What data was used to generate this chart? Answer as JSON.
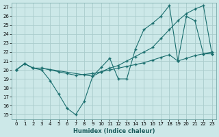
{
  "xlabel": "Humidex (Indice chaleur)",
  "xlim": [
    -0.5,
    23.5
  ],
  "ylim": [
    14.5,
    27.5
  ],
  "yticks": [
    15,
    16,
    17,
    18,
    19,
    20,
    21,
    22,
    23,
    24,
    25,
    26,
    27
  ],
  "xticks": [
    0,
    1,
    2,
    3,
    4,
    5,
    6,
    7,
    8,
    9,
    10,
    11,
    12,
    13,
    14,
    15,
    16,
    17,
    18,
    19,
    20,
    21,
    22,
    23
  ],
  "bg_color": "#cce8e8",
  "grid_color": "#aacccc",
  "line_color": "#1a6e6e",
  "line1_x": [
    0,
    1,
    2,
    3,
    9,
    10,
    11,
    12,
    13,
    14,
    15,
    16,
    17,
    18,
    19,
    20,
    21,
    22,
    23
  ],
  "line1_y": [
    20,
    20.7,
    20.2,
    20.2,
    19.3,
    19.8,
    20.2,
    20.5,
    21.0,
    21.5,
    22.0,
    22.5,
    23.5,
    24.5,
    25.5,
    26.3,
    26.8,
    27.2,
    21.8
  ],
  "line2_x": [
    0,
    1,
    2,
    3,
    4,
    5,
    6,
    7,
    8,
    9,
    10,
    11,
    12,
    13,
    14,
    15,
    16,
    17,
    18,
    19,
    20,
    21,
    22,
    23
  ],
  "line2_y": [
    20,
    20.7,
    20.2,
    20.2,
    20.0,
    19.8,
    19.6,
    19.4,
    19.5,
    19.6,
    19.8,
    20.0,
    20.2,
    20.4,
    20.6,
    20.8,
    21.1,
    21.4,
    21.7,
    21.0,
    21.3,
    21.6,
    21.8,
    22.0
  ],
  "line3_x": [
    0,
    1,
    2,
    3,
    4,
    5,
    6,
    7,
    8,
    9,
    10,
    11,
    12,
    13,
    14,
    15,
    16,
    17,
    18,
    19,
    20,
    21,
    22,
    23
  ],
  "line3_y": [
    20,
    20.7,
    20.2,
    20.0,
    18.8,
    17.3,
    15.7,
    15.0,
    16.5,
    19.3,
    20.3,
    21.3,
    19.0,
    19.0,
    22.3,
    24.5,
    25.2,
    26.0,
    27.2,
    21.0,
    26.0,
    25.5,
    21.8,
    21.8
  ]
}
